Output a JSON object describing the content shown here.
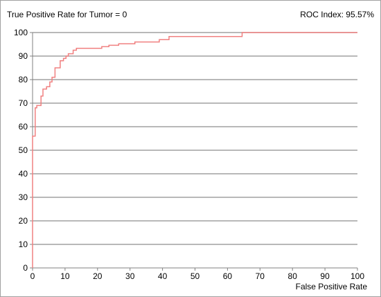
{
  "chart_data": {
    "type": "line",
    "title": "",
    "ylabel": "True Positive Rate for Tumor = 0",
    "xlabel": "False Positive Rate",
    "annotation": "ROC Index: 95.57%",
    "xlim": [
      0,
      100
    ],
    "ylim": [
      0,
      100
    ],
    "xticks": [
      0,
      10,
      20,
      30,
      40,
      50,
      60,
      70,
      80,
      90,
      100
    ],
    "yticks": [
      0,
      10,
      20,
      30,
      40,
      50,
      60,
      70,
      80,
      90,
      100
    ],
    "grid": "horizontal",
    "line_color": "#f08080",
    "series": [
      {
        "points": [
          [
            0,
            0
          ],
          [
            0,
            56
          ],
          [
            0.8,
            56
          ],
          [
            0.8,
            68
          ],
          [
            1.3,
            68
          ],
          [
            1.3,
            69
          ],
          [
            2.6,
            69
          ],
          [
            2.6,
            73
          ],
          [
            3.2,
            73
          ],
          [
            3.2,
            76
          ],
          [
            4.3,
            76
          ],
          [
            4.3,
            77
          ],
          [
            5.3,
            77
          ],
          [
            5.3,
            79
          ],
          [
            6.0,
            79
          ],
          [
            6.0,
            81
          ],
          [
            6.9,
            81
          ],
          [
            6.9,
            85
          ],
          [
            8.5,
            85
          ],
          [
            8.5,
            88
          ],
          [
            9.5,
            88
          ],
          [
            9.5,
            89
          ],
          [
            10.3,
            89
          ],
          [
            10.3,
            90
          ],
          [
            11.0,
            90
          ],
          [
            11.0,
            91
          ],
          [
            12.5,
            91
          ],
          [
            12.5,
            92.5
          ],
          [
            13.5,
            92.5
          ],
          [
            13.5,
            93.3
          ],
          [
            21.3,
            93.3
          ],
          [
            21.3,
            94
          ],
          [
            23.5,
            94
          ],
          [
            23.5,
            94.6
          ],
          [
            26.5,
            94.6
          ],
          [
            26.5,
            95.2
          ],
          [
            31.5,
            95.2
          ],
          [
            31.5,
            96
          ],
          [
            39.0,
            96
          ],
          [
            39.0,
            97
          ],
          [
            42.0,
            97
          ],
          [
            42.0,
            98.3
          ],
          [
            64.5,
            98.3
          ],
          [
            64.5,
            100
          ],
          [
            100,
            100
          ]
        ]
      }
    ]
  }
}
